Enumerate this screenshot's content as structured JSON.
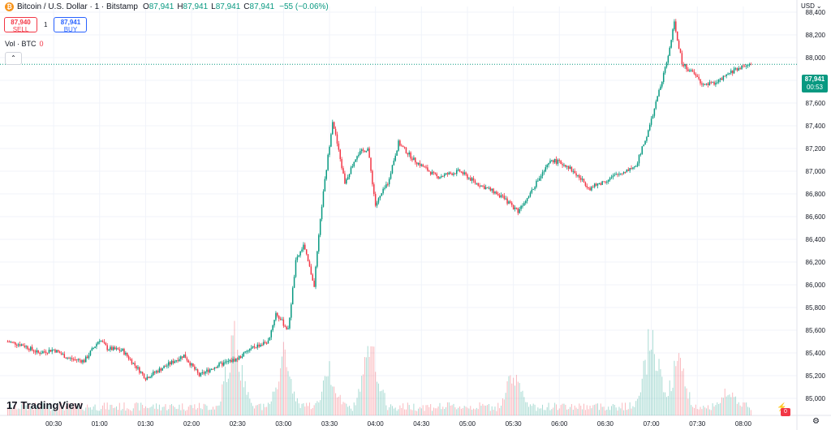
{
  "header": {
    "symbol_title": "Bitcoin / U.S. Dollar · 1 · Bitstamp",
    "ohlc": {
      "o_label": "O",
      "o_value": "87,941",
      "h_label": "H",
      "h_value": "87,941",
      "l_label": "L",
      "l_value": "87,941",
      "c_label": "C",
      "c_value": "87,941",
      "change": "−55 (−0.06%)"
    }
  },
  "trade": {
    "sell_price": "87,940",
    "sell_label": "SELL",
    "spread": "1",
    "buy_price": "87,941",
    "buy_label": "BUY"
  },
  "volume_legend": {
    "label": "Vol · BTC",
    "value": "0"
  },
  "currency": "USD",
  "last_price": {
    "price": "87,941",
    "countdown": "00:53"
  },
  "branding": {
    "logo_mark": "17",
    "logo_text": "TradingView"
  },
  "colors": {
    "up": "#089981",
    "down": "#f23645",
    "grid": "#f0f3fa",
    "text": "#131722"
  },
  "icons": {
    "coin": "bitcoin-icon",
    "settings": "gear-icon",
    "collapse": "chevron-up-icon",
    "alert": "lightning-icon"
  },
  "chart_data": {
    "type": "candlestick",
    "symbol": "BTC/USD",
    "interval": "1 minute",
    "y_range": [
      84850,
      88450
    ],
    "y_ticks": [
      85000,
      85200,
      85400,
      85600,
      85800,
      86000,
      86200,
      86400,
      86600,
      86800,
      87000,
      87200,
      87400,
      87600,
      87800,
      88000,
      88200,
      88400
    ],
    "y_tick_labels": [
      "85,000",
      "85,200",
      "85,400",
      "85,600",
      "85,800",
      "86,000",
      "86,200",
      "86,400",
      "86,600",
      "86,800",
      "87,000",
      "87,200",
      "87,400",
      "87,600",
      "87,800",
      "88,000",
      "88,200",
      "88,400"
    ],
    "x_tick_labels": [
      "00:30",
      "01:00",
      "01:30",
      "02:00",
      "02:30",
      "03:00",
      "03:30",
      "04:00",
      "04:30",
      "05:00",
      "05:30",
      "06:00",
      "06:30",
      "07:00",
      "07:30",
      "08:00"
    ],
    "x_range_minutes": [
      -5,
      515
    ],
    "x_tick_minutes": [
      30,
      60,
      90,
      120,
      150,
      180,
      210,
      240,
      270,
      300,
      330,
      360,
      390,
      420,
      450,
      480
    ],
    "price_anchors": [
      [
        0,
        85500
      ],
      [
        10,
        85470
      ],
      [
        20,
        85400
      ],
      [
        30,
        85430
      ],
      [
        40,
        85350
      ],
      [
        50,
        85330
      ],
      [
        60,
        85520
      ],
      [
        65,
        85440
      ],
      [
        75,
        85420
      ],
      [
        90,
        85180
      ],
      [
        100,
        85260
      ],
      [
        115,
        85380
      ],
      [
        125,
        85200
      ],
      [
        135,
        85280
      ],
      [
        150,
        85350
      ],
      [
        160,
        85450
      ],
      [
        170,
        85500
      ],
      [
        175,
        85750
      ],
      [
        183,
        85600
      ],
      [
        188,
        86200
      ],
      [
        193,
        86350
      ],
      [
        200,
        86000
      ],
      [
        205,
        86700
      ],
      [
        212,
        87450
      ],
      [
        220,
        86900
      ],
      [
        228,
        87150
      ],
      [
        235,
        87200
      ],
      [
        240,
        86700
      ],
      [
        248,
        86900
      ],
      [
        255,
        87250
      ],
      [
        265,
        87100
      ],
      [
        280,
        86950
      ],
      [
        295,
        87000
      ],
      [
        305,
        86900
      ],
      [
        320,
        86800
      ],
      [
        333,
        86650
      ],
      [
        345,
        86900
      ],
      [
        355,
        87100
      ],
      [
        365,
        87050
      ],
      [
        380,
        86850
      ],
      [
        395,
        86950
      ],
      [
        410,
        87050
      ],
      [
        418,
        87350
      ],
      [
        425,
        87700
      ],
      [
        430,
        87950
      ],
      [
        435,
        88300
      ],
      [
        440,
        87950
      ],
      [
        448,
        87850
      ],
      [
        455,
        87750
      ],
      [
        465,
        87800
      ],
      [
        475,
        87900
      ],
      [
        485,
        87941
      ]
    ],
    "volume_peaks": [
      [
        148,
        0.95
      ],
      [
        180,
        0.7
      ],
      [
        210,
        0.55
      ],
      [
        237,
        0.85
      ],
      [
        330,
        0.5
      ],
      [
        420,
        0.95
      ],
      [
        437,
        0.65
      ],
      [
        470,
        0.3
      ]
    ],
    "volume_max_btc": 1.0
  }
}
